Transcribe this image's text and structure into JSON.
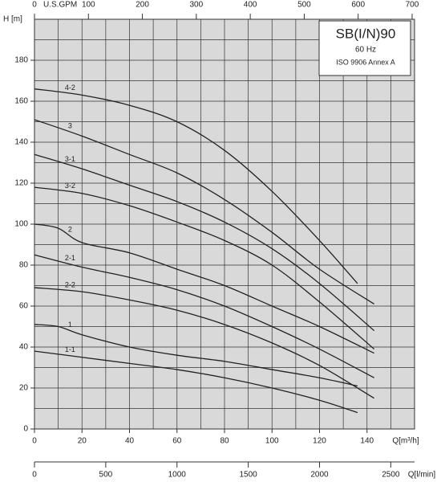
{
  "chart_data": {
    "type": "line",
    "title": "SB(I/N)90",
    "subtitle": "60 Hz",
    "note": "ISO 9906 Annex A",
    "ylabel": "H [m]",
    "xlabel": "Q[m³/h]",
    "x2label": "U.S.GPM",
    "x3label": "Q[l/min]",
    "xlim": [
      0,
      160
    ],
    "xticks": [
      0,
      20,
      40,
      60,
      80,
      100,
      120,
      140
    ],
    "xminor": [
      10,
      30,
      50,
      70,
      90,
      110,
      130,
      150
    ],
    "ylim": [
      0,
      200
    ],
    "yticks": [
      0,
      20,
      40,
      60,
      80,
      100,
      120,
      140,
      160,
      180
    ],
    "yminor": [
      10,
      30,
      50,
      70,
      90,
      110,
      130,
      150,
      170,
      190
    ],
    "x2lim": [
      0,
      704.5
    ],
    "x2ticks": [
      0,
      100,
      200,
      300,
      400,
      500,
      600,
      700
    ],
    "x3lim": [
      0,
      2666.7
    ],
    "x3ticks": [
      0,
      500,
      1000,
      1500,
      2000,
      2500
    ],
    "grid": true,
    "color": "#222222",
    "series": [
      {
        "name": "4-2",
        "x": [
          0,
          20,
          40,
          60,
          80,
          100,
          120,
          136
        ],
        "values": [
          166,
          163,
          158,
          150,
          136,
          116,
          92,
          71
        ]
      },
      {
        "name": "3",
        "x": [
          0,
          20,
          40,
          60,
          80,
          100,
          120,
          143
        ],
        "values": [
          151,
          143,
          134,
          125,
          112,
          96,
          78,
          61
        ]
      },
      {
        "name": "3-1",
        "x": [
          0,
          20,
          40,
          60,
          80,
          100,
          120,
          143
        ],
        "values": [
          134,
          127,
          119,
          111,
          101,
          88,
          71,
          48
        ]
      },
      {
        "name": "3-2",
        "x": [
          0,
          20,
          40,
          60,
          80,
          100,
          120,
          143
        ],
        "values": [
          118,
          115,
          109,
          101,
          92,
          80,
          62,
          39
        ]
      },
      {
        "name": "2",
        "x": [
          0,
          10,
          20,
          40,
          60,
          80,
          100,
          120,
          143
        ],
        "values": [
          100,
          98,
          91,
          86,
          78,
          70,
          60,
          50,
          37
        ]
      },
      {
        "name": "2-1",
        "x": [
          0,
          20,
          40,
          60,
          80,
          100,
          120,
          143
        ],
        "values": [
          85,
          79,
          74,
          68,
          60,
          50,
          39,
          25
        ]
      },
      {
        "name": "2-2",
        "x": [
          0,
          20,
          40,
          60,
          80,
          100,
          120,
          143
        ],
        "values": [
          69,
          67,
          63,
          58,
          51,
          42,
          31,
          15
        ]
      },
      {
        "name": "1",
        "x": [
          0,
          10,
          20,
          40,
          60,
          80,
          100,
          120,
          136
        ],
        "values": [
          51,
          50,
          46,
          40,
          36,
          33,
          29,
          25,
          21
        ]
      },
      {
        "name": "1-1",
        "x": [
          0,
          20,
          40,
          60,
          80,
          100,
          120,
          136
        ],
        "values": [
          38,
          35,
          32,
          29,
          25,
          20,
          14,
          8
        ]
      }
    ]
  }
}
